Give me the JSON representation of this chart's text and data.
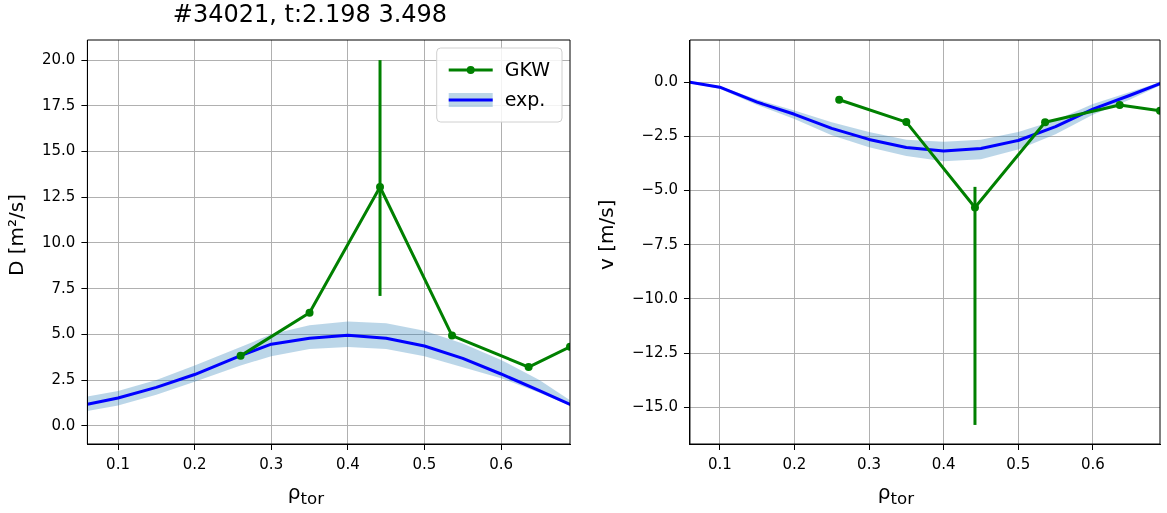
{
  "chart_data": [
    {
      "type": "line",
      "title": "#34021, t:2.198 3.498",
      "xlabel": "ρ$_{tor}$",
      "ylabel": "D [m²/s]",
      "xlim": [
        0.06,
        0.69
      ],
      "xticks": [
        0.1,
        0.2,
        0.3,
        0.4,
        0.5,
        0.6
      ],
      "ylim": [
        -1.0,
        21.1
      ],
      "yticks": [
        {
          "value": 0,
          "label": "0.0"
        },
        2.5,
        {
          "value": 5,
          "label": "5.0"
        },
        7.5,
        {
          "value": 10,
          "label": "10.0"
        },
        12.5,
        {
          "value": 15,
          "label": "15.0"
        },
        17.5,
        {
          "value": 20,
          "label": "20.0"
        }
      ],
      "grid": true,
      "legend": "top right",
      "series": [
        {
          "name": "GKW",
          "color": "#008000",
          "marker": "circle",
          "x": [
            0.26,
            0.35,
            0.442,
            0.536,
            0.636,
            0.69
          ],
          "values": [
            3.83,
            6.18,
            13.06,
            4.93,
            3.21,
            4.32
          ],
          "errors": [
            null,
            null,
            [
              7.1,
              20.0
            ],
            null,
            null,
            null
          ]
        },
        {
          "name": "exp.",
          "color": "#0000ff",
          "marker": "none",
          "x": [
            0.06,
            0.1,
            0.15,
            0.2,
            0.26,
            0.3,
            0.35,
            0.4,
            0.45,
            0.5,
            0.55,
            0.6,
            0.65,
            0.69
          ],
          "values": [
            1.17,
            1.52,
            2.1,
            2.8,
            3.83,
            4.46,
            4.79,
            4.95,
            4.79,
            4.36,
            3.68,
            2.83,
            1.92,
            1.17
          ],
          "lower": [
            0.8,
            1.1,
            1.7,
            2.4,
            3.3,
            3.8,
            4.2,
            4.3,
            4.2,
            3.8,
            3.2,
            2.6,
            1.8,
            1.1
          ],
          "upper": [
            1.6,
            1.9,
            2.5,
            3.3,
            4.3,
            5.0,
            5.5,
            5.7,
            5.6,
            5.2,
            4.5,
            3.6,
            2.5,
            1.4
          ]
        }
      ]
    },
    {
      "type": "line",
      "xlabel": "ρ$_{tor}$",
      "ylabel": "v [m/s]",
      "xlim": [
        0.06,
        0.69
      ],
      "xticks": [
        0.1,
        0.2,
        0.3,
        0.4,
        0.5,
        0.6
      ],
      "ylim": [
        -16.7,
        1.95
      ],
      "yticks": [
        {
          "value": 0,
          "label": "0.0"
        },
        {
          "value": -2.5,
          "label": "−2.5"
        },
        {
          "value": -5,
          "label": "−5.0"
        },
        {
          "value": -7.5,
          "label": "−7.5"
        },
        {
          "value": -10,
          "label": "−10.0"
        },
        {
          "value": -12.5,
          "label": "−12.5"
        },
        {
          "value": -15,
          "label": "−15.0"
        }
      ],
      "grid": true,
      "series": [
        {
          "color": "#008000",
          "marker": "circle",
          "x": [
            0.26,
            0.35,
            0.442,
            0.536,
            0.636,
            0.69
          ],
          "values": [
            -0.81,
            -1.84,
            -5.78,
            -1.85,
            -1.05,
            -1.32
          ],
          "errors": [
            null,
            null,
            [
              -15.82,
              -4.83
            ],
            null,
            null,
            null
          ]
        },
        {
          "color": "#0000ff",
          "marker": "none",
          "x": [
            0.06,
            0.1,
            0.15,
            0.2,
            0.25,
            0.3,
            0.35,
            0.4,
            0.45,
            0.5,
            0.55,
            0.6,
            0.65,
            0.69
          ],
          "values": [
            0,
            -0.23,
            -0.92,
            -1.48,
            -2.13,
            -2.64,
            -3.01,
            -3.17,
            -3.06,
            -2.69,
            -2.05,
            -1.24,
            -0.6,
            -0.06
          ],
          "lower": [
            -0.05,
            -0.3,
            -1.05,
            -1.7,
            -2.45,
            -3.0,
            -3.4,
            -3.65,
            -3.55,
            -3.1,
            -2.4,
            -1.5,
            -0.8,
            -0.15
          ],
          "upper": [
            0.0,
            -0.18,
            -0.8,
            -1.3,
            -1.85,
            -2.3,
            -2.65,
            -2.75,
            -2.65,
            -2.3,
            -1.75,
            -1.0,
            -0.45,
            0.0
          ]
        }
      ]
    }
  ]
}
